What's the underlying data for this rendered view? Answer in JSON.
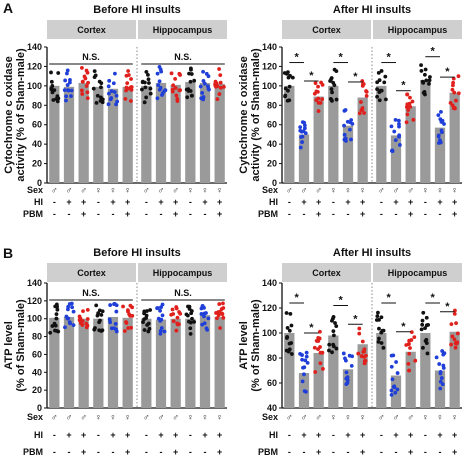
{
  "figure": {
    "panel_letters": [
      "A",
      "B"
    ],
    "colors": {
      "bar": "#9a9a9a",
      "header_box": "#cfcfcf",
      "black_dot": "#111111",
      "blue_dot": "#1f3fd8",
      "red_dot": "#e0201c"
    },
    "row_labels": {
      "sex": "Sex",
      "hi": "HI",
      "pbm": "PBM"
    },
    "sex_symbols": [
      "♂",
      "♂",
      "♂",
      "♀",
      "♀",
      "♀"
    ],
    "hi_signs": [
      "-",
      "+",
      "+",
      "-",
      "+",
      "+"
    ],
    "pbm_signs": [
      "-",
      "-",
      "+",
      "-",
      "-",
      "+"
    ],
    "region_labels": [
      "Cortex",
      "Hippocampus"
    ]
  },
  "chart_data": [
    {
      "type": "bar",
      "panel": "A",
      "title": "Before HI insults",
      "ylabel": "Cytochrome c oxidase activity (% of Sham-male)",
      "ylim": [
        0,
        140
      ],
      "yticks": [
        0,
        20,
        40,
        60,
        80,
        100,
        120,
        140
      ],
      "categories": [
        "Cortex ♂ Sham",
        "Cortex ♂ HI",
        "Cortex ♂ HI+PBM",
        "Cortex ♀ Sham",
        "Cortex ♀ HI",
        "Cortex ♀ HI+PBM",
        "Hippocampus ♂ Sham",
        "Hippocampus ♂ HI",
        "Hippocampus ♂ HI+PBM",
        "Hippocampus ♀ Sham",
        "Hippocampus ♀ HI",
        "Hippocampus ♀ HI+PBM"
      ],
      "values": [
        100,
        99,
        103,
        99,
        97,
        99,
        100,
        103,
        101,
        104,
        103,
        102
      ],
      "annotations": [
        "N.S.",
        "N.S."
      ]
    },
    {
      "type": "bar",
      "panel": "A",
      "title": "After HI insults",
      "ylabel": "Cytochrome c oxidase activity (% of Sham-male)",
      "ylim": [
        0,
        140
      ],
      "yticks": [
        0,
        20,
        40,
        60,
        80,
        100,
        120,
        140
      ],
      "categories": [
        "Cortex ♂ Sham",
        "Cortex ♂ HI",
        "Cortex ♂ HI+PBM",
        "Cortex ♀ Sham",
        "Cortex ♀ HI",
        "Cortex ♀ HI+PBM",
        "Hippocampus ♂ Sham",
        "Hippocampus ♂ HI",
        "Hippocampus ♂ HI+PBM",
        "Hippocampus ♀ Sham",
        "Hippocampus ♀ HI",
        "Hippocampus ♀ HI+PBM"
      ],
      "values": [
        100,
        50,
        89,
        100,
        59,
        88,
        100,
        49,
        79,
        106,
        57,
        93
      ],
      "annotations": [
        "*",
        "*",
        "*",
        "*",
        "*",
        "*",
        "*",
        "*"
      ]
    },
    {
      "type": "bar",
      "panel": "B",
      "title": "Before HI insults",
      "ylabel": "ATP level (% of Sham-male)",
      "ylim": [
        0,
        140
      ],
      "yticks": [
        0,
        20,
        40,
        60,
        80,
        100,
        120,
        140
      ],
      "categories": [
        "Cortex ♂ Sham",
        "Cortex ♂ HI",
        "Cortex ♂ HI+PBM",
        "Cortex ♀ Sham",
        "Cortex ♀ HI",
        "Cortex ♀ HI+PBM",
        "Hippocampus ♂ Sham",
        "Hippocampus ♂ HI",
        "Hippocampus ♂ HI+PBM",
        "Hippocampus ♀ Sham",
        "Hippocampus ♀ HI",
        "Hippocampus ♀ HI+PBM"
      ],
      "values": [
        101,
        102,
        100,
        100,
        102,
        101,
        100,
        99,
        100,
        100,
        104,
        102
      ],
      "annotations": [
        "N.S.",
        "N.S."
      ]
    },
    {
      "type": "bar",
      "panel": "B",
      "title": "After HI insults",
      "ylabel": "ATP level (% of Sham-male)",
      "ylim": [
        40,
        140
      ],
      "yticks": [
        40,
        60,
        80,
        100,
        120,
        140
      ],
      "categories": [
        "Cortex ♂ Sham",
        "Cortex ♂ HI",
        "Cortex ♂ HI+PBM",
        "Cortex ♀ Sham",
        "Cortex ♀ HI",
        "Cortex ♀ HI+PBM",
        "Hippocampus ♂ Sham",
        "Hippocampus ♂ HI",
        "Hippocampus ♂ HI+PBM",
        "Hippocampus ♀ Sham",
        "Hippocampus ♀ HI",
        "Hippocampus ♀ HI+PBM"
      ],
      "values": [
        100,
        68,
        84,
        98,
        71,
        91,
        100,
        66,
        85,
        100,
        70,
        101
      ],
      "annotations": [
        "*",
        "*",
        "*",
        "*",
        "*",
        "*",
        "*",
        "*"
      ]
    }
  ]
}
